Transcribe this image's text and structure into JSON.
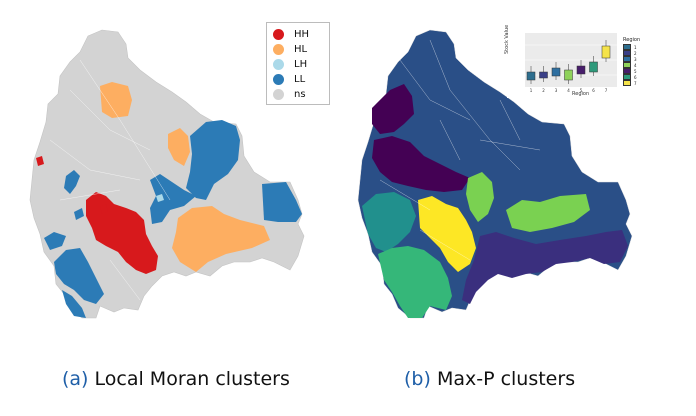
{
  "left_map": {
    "legend": [
      {
        "label": "HH",
        "color": "#d7191c"
      },
      {
        "label": "HL",
        "color": "#fdae61"
      },
      {
        "label": "LH",
        "color": "#abd9e9"
      },
      {
        "label": "LL",
        "color": "#2c7bb6"
      },
      {
        "label": "ns",
        "color": "#d3d3d3"
      }
    ]
  },
  "right_map": {
    "palette": [
      "#440154",
      "#31688e",
      "#2a4f87",
      "#35b779",
      "#21908d",
      "#7ad151",
      "#fde725"
    ],
    "inset": {
      "xlabel": "Region",
      "ylabel": "Stock Value",
      "legend_title": "Region",
      "legend_entries": [
        "1",
        "2",
        "3",
        "4",
        "5",
        "6",
        "7"
      ],
      "tick_labels": [
        "1",
        "2",
        "3",
        "4",
        "5",
        "6",
        "7"
      ],
      "colors": [
        "#2d6e8e",
        "#3a3f87",
        "#2f6fa0",
        "#8fd25a",
        "#471d6b",
        "#2e9a7b",
        "#f5e34a"
      ]
    }
  },
  "captions": {
    "a_tag": "(a)",
    "a_text": "Local Moran clusters",
    "b_tag": "(b)",
    "b_text": "Max-P clusters"
  }
}
